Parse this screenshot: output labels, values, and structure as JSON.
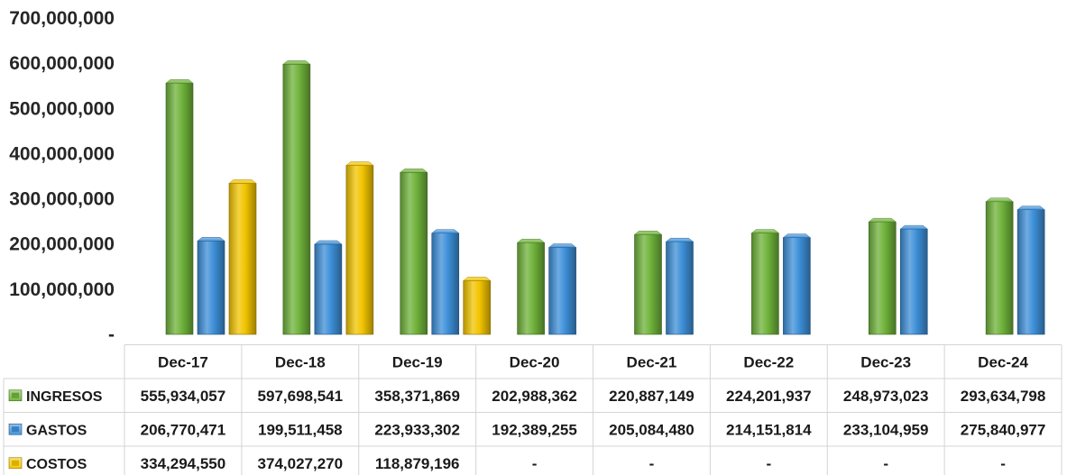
{
  "chart_data": {
    "type": "bar",
    "categories": [
      "Dec-17",
      "Dec-18",
      "Dec-19",
      "Dec-20",
      "Dec-21",
      "Dec-22",
      "Dec-23",
      "Dec-24"
    ],
    "series": [
      {
        "name": "INGRESOS",
        "color": "#6fb23a",
        "values": [
          555934057,
          597698541,
          358371869,
          202988362,
          220887149,
          224201937,
          248973023,
          293634798
        ],
        "labels": [
          "555,934,057",
          "597,698,541",
          "358,371,869",
          "202,988,362",
          "220,887,149",
          "224,201,937",
          "248,973,023",
          "293,634,798"
        ]
      },
      {
        "name": "GASTOS",
        "color": "#3d8fd8",
        "values": [
          206770471,
          199511458,
          223933302,
          192389255,
          205084480,
          214151814,
          233104959,
          275840977
        ],
        "labels": [
          "206,770,471",
          "199,511,458",
          "223,933,302",
          "192,389,255",
          "205,084,480",
          "214,151,814",
          "233,104,959",
          "275,840,977"
        ]
      },
      {
        "name": "COSTOS",
        "color": "#f2c400",
        "values": [
          334294550,
          374027270,
          118879196,
          0,
          0,
          0,
          0,
          0
        ],
        "labels": [
          "334,294,550",
          "374,027,270",
          "118,879,196",
          "-",
          "-",
          "-",
          "-",
          "-"
        ]
      }
    ],
    "ylim": [
      0,
      700000000
    ],
    "y_ticks": [
      0,
      100000000,
      200000000,
      300000000,
      400000000,
      500000000,
      600000000,
      700000000
    ],
    "y_tick_labels": [
      "-",
      "100,000,000",
      "200,000,000",
      "300,000,000",
      "400,000,000",
      "500,000,000",
      "600,000,000",
      "700,000,000"
    ],
    "grid": false,
    "legend": "data table below chart"
  }
}
